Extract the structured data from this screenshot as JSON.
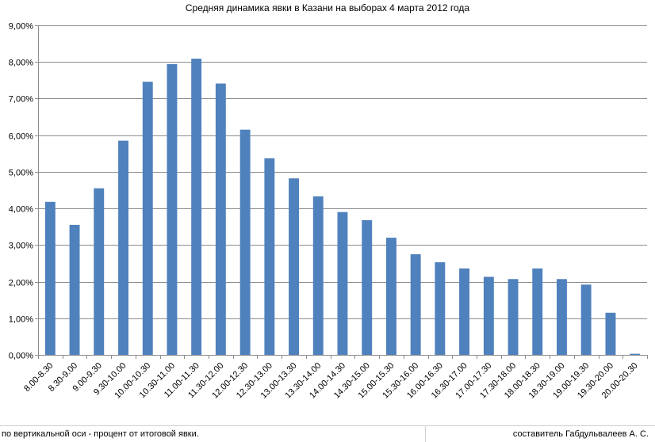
{
  "chart_data": {
    "type": "bar",
    "title": "Средняя динамика явки в Казани на выборах 4 марта 2012 года",
    "xlabel": "",
    "ylabel": "",
    "ylim": [
      0,
      9
    ],
    "ytick_labels": [
      "0,00%",
      "1,00%",
      "2,00%",
      "3,00%",
      "4,00%",
      "5,00%",
      "6,00%",
      "7,00%",
      "8,00%",
      "9,00%"
    ],
    "grid": true,
    "legend": "none",
    "bar_color": "#4f81bd",
    "categories": [
      "8.00-8.30",
      "8.30-9.00",
      "9.00-9.30",
      "9.30-10.00",
      "10.00-10.30",
      "10.30-11.00",
      "11.00-11.30",
      "11.30-12.00",
      "12.00-12.30",
      "12.30-13.00",
      "13.00-13.30",
      "13.30-14.00",
      "14.00-14.30",
      "14.30-15.00",
      "15.00-15.30",
      "15.30-16.00",
      "16.00-16.30",
      "16.30-17.00",
      "17.00-17.30",
      "17.30-18.00",
      "18.00-18.30",
      "18.30-19.00",
      "19.00-19.30",
      "19.30-20.00",
      "20.00-20.30"
    ],
    "values": [
      4.18,
      3.55,
      4.55,
      5.85,
      7.46,
      7.94,
      8.09,
      7.41,
      6.15,
      5.37,
      4.82,
      4.33,
      3.9,
      3.68,
      3.2,
      2.75,
      2.53,
      2.36,
      2.13,
      2.07,
      2.36,
      2.07,
      1.92,
      1.15,
      0.03
    ]
  },
  "footer": {
    "note": "по вертикальной оси - процент от итоговой явки.",
    "author": "составитель Габдульвалеев А. С."
  }
}
